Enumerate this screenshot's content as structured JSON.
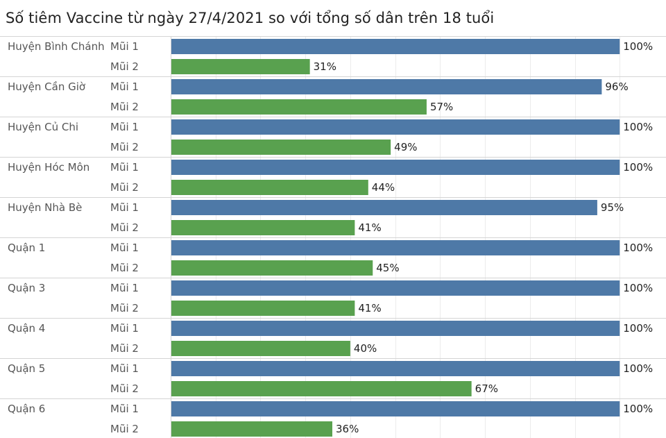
{
  "chart_data": {
    "type": "bar",
    "orientation": "horizontal",
    "title": "Số tiêm Vaccine từ ngày 27/4/2021 so với tổng số dân trên 18 tuổi",
    "xlim": [
      0,
      110
    ],
    "grid": true,
    "unit_suffix": "%",
    "colors": {
      "Mũi 1": "#4e79a7",
      "Mũi 2": "#59a14f"
    },
    "groups": [
      {
        "district": "Huyện Bình Chánh",
        "bars": [
          {
            "dose": "Mũi 1",
            "value": 100,
            "label": "100%"
          },
          {
            "dose": "Mũi 2",
            "value": 31,
            "label": "31%"
          }
        ]
      },
      {
        "district": "Huyện Cần Giờ",
        "bars": [
          {
            "dose": "Mũi 1",
            "value": 96,
            "label": "96%"
          },
          {
            "dose": "Mũi 2",
            "value": 57,
            "label": "57%"
          }
        ]
      },
      {
        "district": "Huyện Củ Chi",
        "bars": [
          {
            "dose": "Mũi 1",
            "value": 100,
            "label": "100%"
          },
          {
            "dose": "Mũi 2",
            "value": 49,
            "label": "49%"
          }
        ]
      },
      {
        "district": "Huyện Hóc Môn",
        "bars": [
          {
            "dose": "Mũi 1",
            "value": 100,
            "label": "100%"
          },
          {
            "dose": "Mũi 2",
            "value": 44,
            "label": "44%"
          }
        ]
      },
      {
        "district": "Huyện Nhà Bè",
        "bars": [
          {
            "dose": "Mũi 1",
            "value": 95,
            "label": "95%"
          },
          {
            "dose": "Mũi 2",
            "value": 41,
            "label": "41%"
          }
        ]
      },
      {
        "district": "Quận 1",
        "bars": [
          {
            "dose": "Mũi 1",
            "value": 100,
            "label": "100%"
          },
          {
            "dose": "Mũi 2",
            "value": 45,
            "label": "45%"
          }
        ]
      },
      {
        "district": "Quận 3",
        "bars": [
          {
            "dose": "Mũi 1",
            "value": 100,
            "label": "100%"
          },
          {
            "dose": "Mũi 2",
            "value": 41,
            "label": "41%"
          }
        ]
      },
      {
        "district": "Quận 4",
        "bars": [
          {
            "dose": "Mũi 1",
            "value": 100,
            "label": "100%"
          },
          {
            "dose": "Mũi 2",
            "value": 40,
            "label": "40%"
          }
        ]
      },
      {
        "district": "Quận 5",
        "bars": [
          {
            "dose": "Mũi 1",
            "value": 100,
            "label": "100%"
          },
          {
            "dose": "Mũi 2",
            "value": 67,
            "label": "67%"
          }
        ]
      },
      {
        "district": "Quận 6",
        "bars": [
          {
            "dose": "Mũi 1",
            "value": 100,
            "label": "100%"
          },
          {
            "dose": "Mũi 2",
            "value": 36,
            "label": "36%"
          }
        ]
      }
    ]
  }
}
